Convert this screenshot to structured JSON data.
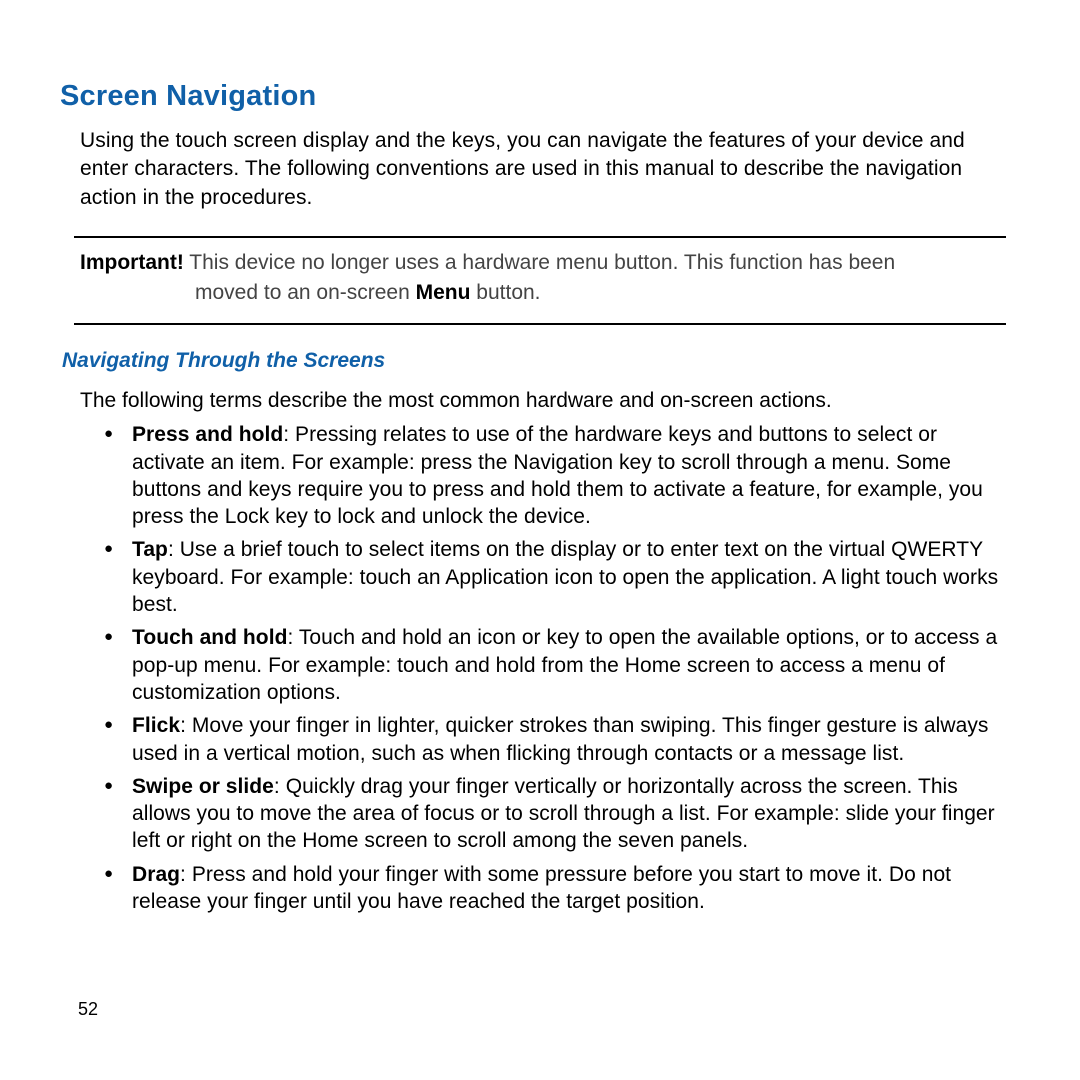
{
  "heading": "Screen Navigation",
  "intro": "Using the touch screen display and the keys, you can navigate the features of your device and enter characters. The following conventions are used in this manual to describe the navigation action in the procedures.",
  "callout": {
    "label": "Important!",
    "line1": " This device no longer uses a hardware menu button. This function has been",
    "line2_pre": "moved to an on-screen  ",
    "line2_bold": "Menu",
    "line2_post": " button."
  },
  "subheading": "Navigating Through the Screens",
  "subintro": "The following terms describe the most common hardware and on-screen actions.",
  "items": [
    {
      "term": "Press and hold",
      "desc": ": Pressing relates to use of the hardware keys and buttons to select or activate an item. For example: press the Navigation key to scroll through a menu. Some buttons and keys require you to press and hold them to activate a feature, for example, you press the Lock key to lock and unlock the device."
    },
    {
      "term": "Tap",
      "desc": ": Use a brief touch to select items on the display or to enter text on the virtual QWERTY keyboard. For example: touch an Application icon to open the application. A light touch works best."
    },
    {
      "term": "Touch and hold",
      "desc": ": Touch and hold an icon or key to open the available options, or to access a pop-up menu. For example: touch and hold from the Home screen to access a menu of customization options."
    },
    {
      "term": "Flick",
      "desc": ": Move your finger in lighter, quicker strokes than swiping. This finger gesture is always used in a vertical motion, such as when flicking through contacts or a message list."
    },
    {
      "term": "Swipe or slide",
      "desc": ": Quickly drag your finger vertically or horizontally across the screen. This allows you to move the area of focus or to scroll through a list. For example: slide your finger left or right on the Home screen to scroll among the seven panels."
    },
    {
      "term": "Drag",
      "desc": ": Press and hold your finger with some pressure before you start to move it. Do not release your finger until you have reached the target position."
    }
  ],
  "page_number": "52"
}
